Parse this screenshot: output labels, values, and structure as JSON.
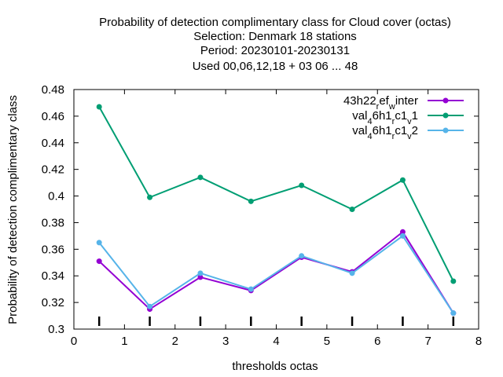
{
  "chart_data": {
    "type": "line",
    "title_lines": [
      "Probability of detection complimentary class  for Cloud cover (octas)",
      "Selection: Denmark      18 stations",
      "Period: 20230101-20230131",
      "Used  00,06,12,18  + 03 06 ... 48"
    ],
    "xlabel": "thresholds octas",
    "ylabel": "Probability of detection complimentary class",
    "xlim": [
      0,
      8
    ],
    "ylim": [
      0.3,
      0.48
    ],
    "xticks": [
      0,
      1,
      2,
      3,
      4,
      5,
      6,
      7,
      8
    ],
    "yticks": [
      0.3,
      0.32,
      0.34,
      0.36,
      0.38,
      0.4,
      0.42,
      0.44,
      0.46,
      0.48
    ],
    "x": [
      0.5,
      1.5,
      2.5,
      3.5,
      4.5,
      5.5,
      6.5,
      7.5
    ],
    "series": [
      {
        "name": "43h22_ref_winter",
        "legend_parts": [
          [
            "43h22",
            "n"
          ],
          [
            "r",
            "s"
          ],
          [
            "ef",
            "n"
          ],
          [
            "w",
            "s"
          ],
          [
            "inter",
            "n"
          ]
        ],
        "color": "#9400d3",
        "values": [
          0.351,
          0.315,
          0.339,
          0.329,
          0.354,
          0.343,
          0.373,
          0.312
        ]
      },
      {
        "name": "val_46h1_rc1_v1",
        "legend_parts": [
          [
            "val",
            "n"
          ],
          [
            "4",
            "s"
          ],
          [
            "6h1",
            "n"
          ],
          [
            "r",
            "s"
          ],
          [
            "c1",
            "n"
          ],
          [
            "v",
            "s"
          ],
          [
            "1",
            "n"
          ]
        ],
        "color": "#009e73",
        "values": [
          0.467,
          0.399,
          0.414,
          0.396,
          0.408,
          0.39,
          0.412,
          0.336
        ]
      },
      {
        "name": "val_46h1_rc1_v2",
        "legend_parts": [
          [
            "val",
            "n"
          ],
          [
            "4",
            "s"
          ],
          [
            "6h1",
            "n"
          ],
          [
            "r",
            "s"
          ],
          [
            "c1",
            "n"
          ],
          [
            "v",
            "s"
          ],
          [
            "2",
            "n"
          ]
        ],
        "color": "#56b4e9",
        "values": [
          0.365,
          0.317,
          0.342,
          0.33,
          0.355,
          0.342,
          0.37,
          0.312
        ]
      }
    ],
    "sample_markers_x": [
      0.5,
      1.5,
      2.5,
      3.5,
      4.5,
      5.5,
      6.5,
      7.5
    ],
    "grid": false,
    "legend_position": "top-right"
  }
}
